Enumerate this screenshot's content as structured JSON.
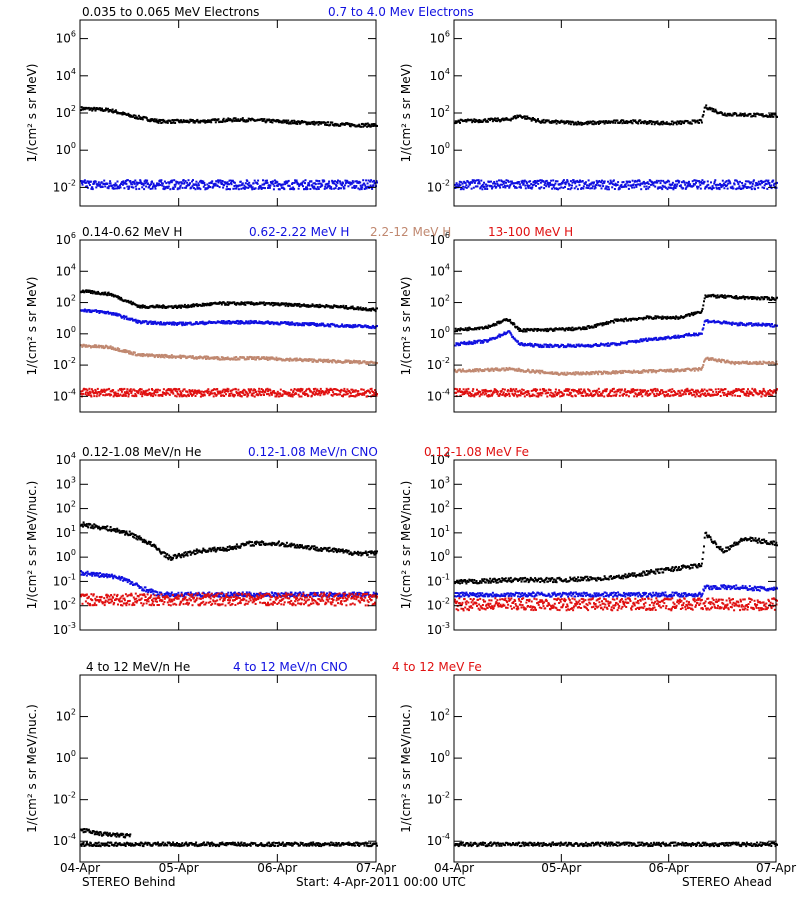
{
  "colors": {
    "black": "#000000",
    "blue": "#1010e0",
    "tan": "#c08870",
    "red": "#e01010"
  },
  "x_ticks": [
    "04-Apr",
    "05-Apr",
    "06-Apr",
    "07-Apr"
  ],
  "footer": {
    "left": "STEREO Behind",
    "center": "Start:  4-Apr-2011 00:00 UTC",
    "right": "STEREO Ahead"
  },
  "chart_data": [
    {
      "type": "scatter",
      "panel": "electrons",
      "ylabel": "1/(cm² s sr MeV)",
      "yscale": "log",
      "ylim_log10": [
        -3,
        7
      ],
      "ytick_exponents": [
        -2,
        0,
        2,
        4,
        6
      ],
      "xlim_days": [
        0,
        3
      ],
      "species": [
        {
          "name": "0.035 to 0.065 MeV Electrons",
          "color": "black"
        },
        {
          "name": "0.7 to 4.0 Mev Electrons",
          "color": "blue"
        }
      ],
      "behind": [
        {
          "color": "black",
          "x": [
            0,
            0.3,
            0.5,
            0.8,
            1.2,
            1.6,
            2.0,
            2.4,
            2.8,
            3.0
          ],
          "log10": [
            2.3,
            2.2,
            1.9,
            1.6,
            1.6,
            1.7,
            1.6,
            1.5,
            1.4,
            1.4
          ]
        },
        {
          "color": "blue",
          "x": [
            0,
            3.0
          ],
          "log10": [
            -1.8,
            -1.8
          ]
        }
      ],
      "ahead": [
        {
          "color": "black",
          "x": [
            0,
            0.5,
            0.6,
            0.8,
            1.2,
            1.6,
            2.0,
            2.3,
            2.33,
            2.5,
            3.0
          ],
          "log10": [
            1.6,
            1.7,
            1.9,
            1.6,
            1.5,
            1.6,
            1.5,
            1.6,
            2.4,
            2.0,
            1.9
          ]
        },
        {
          "color": "blue",
          "x": [
            0,
            3.0
          ],
          "log10": [
            -1.8,
            -1.8
          ]
        }
      ]
    },
    {
      "type": "scatter",
      "panel": "protons",
      "ylabel": "1/(cm² s sr MeV)",
      "yscale": "log",
      "ylim_log10": [
        -5,
        6
      ],
      "ytick_exponents": [
        -4,
        -2,
        0,
        2,
        4,
        6
      ],
      "xlim_days": [
        0,
        3
      ],
      "species": [
        {
          "name": "0.14-0.62 MeV H",
          "color": "black"
        },
        {
          "name": "0.62-2.22 MeV H",
          "color": "blue"
        },
        {
          "name": "2.2-12 MeV H",
          "color": "tan"
        },
        {
          "name": "13-100 MeV H",
          "color": "red"
        }
      ],
      "behind": [
        {
          "color": "black",
          "x": [
            0,
            0.3,
            0.6,
            1.0,
            1.4,
            1.8,
            2.2,
            2.6,
            3.0
          ],
          "log10": [
            2.8,
            2.6,
            1.8,
            1.8,
            2.0,
            2.0,
            1.9,
            1.8,
            1.6
          ]
        },
        {
          "color": "blue",
          "x": [
            0,
            0.3,
            0.6,
            1.0,
            1.4,
            1.8,
            2.2,
            2.6,
            3.0
          ],
          "log10": [
            1.6,
            1.4,
            0.8,
            0.7,
            0.8,
            0.8,
            0.7,
            0.6,
            0.5
          ]
        },
        {
          "color": "tan",
          "x": [
            0,
            0.3,
            0.6,
            1.0,
            1.4,
            1.8,
            2.2,
            2.6,
            3.0
          ],
          "log10": [
            -0.7,
            -0.8,
            -1.3,
            -1.4,
            -1.5,
            -1.5,
            -1.6,
            -1.7,
            -1.8
          ]
        },
        {
          "color": "red",
          "x": [
            0,
            3.0
          ],
          "log10": [
            -3.7,
            -3.7
          ]
        }
      ],
      "ahead": [
        {
          "color": "black",
          "x": [
            0,
            0.3,
            0.5,
            0.6,
            0.8,
            1.2,
            1.5,
            1.8,
            2.1,
            2.3,
            2.33,
            2.6,
            3.0
          ],
          "log10": [
            0.3,
            0.5,
            1.0,
            0.3,
            0.3,
            0.4,
            0.9,
            1.1,
            1.1,
            1.5,
            2.5,
            2.4,
            2.3
          ]
        },
        {
          "color": "blue",
          "x": [
            0,
            0.3,
            0.5,
            0.6,
            0.8,
            1.2,
            1.5,
            1.8,
            2.1,
            2.3,
            2.33,
            2.6,
            3.0
          ],
          "log10": [
            -0.6,
            -0.4,
            0.2,
            -0.6,
            -0.7,
            -0.7,
            -0.6,
            -0.3,
            -0.1,
            0.1,
            0.9,
            0.7,
            0.6
          ]
        },
        {
          "color": "tan",
          "x": [
            0,
            0.5,
            1.0,
            1.5,
            2.0,
            2.3,
            2.33,
            2.6,
            3.0
          ],
          "log10": [
            -2.3,
            -2.2,
            -2.5,
            -2.4,
            -2.3,
            -2.2,
            -1.5,
            -1.8,
            -1.8
          ]
        },
        {
          "color": "red",
          "x": [
            0,
            3.0
          ],
          "log10": [
            -3.7,
            -3.7
          ]
        }
      ]
    },
    {
      "type": "scatter",
      "panel": "heavy-ions-low",
      "ylabel": "1/(cm² s sr MeV/nuc.)",
      "yscale": "log",
      "ylim_log10": [
        -3,
        4
      ],
      "ytick_exponents": [
        -3,
        -2,
        -1,
        0,
        1,
        2,
        3,
        4
      ],
      "xlim_days": [
        0,
        3
      ],
      "species": [
        {
          "name": "0.12-1.08 MeV/n He",
          "color": "black"
        },
        {
          "name": "0.12-1.08 MeV/n CNO",
          "color": "blue"
        },
        {
          "name": "0.12-1.08 MeV Fe",
          "color": "red"
        }
      ],
      "behind": [
        {
          "color": "black",
          "x": [
            0,
            0.3,
            0.5,
            0.7,
            0.9,
            1.2,
            1.5,
            1.7,
            2.0,
            2.4,
            2.8,
            3.0
          ],
          "log10": [
            1.4,
            1.2,
            1.0,
            0.6,
            0.0,
            0.3,
            0.4,
            0.6,
            0.6,
            0.4,
            0.2,
            0.2
          ]
        },
        {
          "color": "blue",
          "x": [
            0,
            0.4,
            0.6,
            0.8,
            3.0
          ],
          "log10": [
            -0.6,
            -0.8,
            -1.2,
            -1.5,
            -1.5
          ]
        },
        {
          "color": "red",
          "x": [
            0,
            3.0
          ],
          "log10": [
            -1.7,
            -1.7
          ]
        }
      ],
      "ahead": [
        {
          "color": "black",
          "x": [
            0,
            0.5,
            1.0,
            1.5,
            1.8,
            2.1,
            2.3,
            2.33,
            2.5,
            2.7,
            3.0
          ],
          "log10": [
            -1.0,
            -0.9,
            -0.9,
            -0.8,
            -0.6,
            -0.4,
            -0.3,
            1.0,
            0.3,
            0.8,
            0.6
          ]
        },
        {
          "color": "blue",
          "x": [
            0,
            2.3,
            2.33,
            2.6,
            3.0
          ],
          "log10": [
            -1.5,
            -1.5,
            -1.2,
            -1.2,
            -1.3
          ]
        },
        {
          "color": "red",
          "x": [
            0,
            3.0
          ],
          "log10": [
            -1.9,
            -1.9
          ]
        }
      ]
    },
    {
      "type": "scatter",
      "panel": "heavy-ions-high",
      "ylabel": "1/(cm² s sr MeV/nuc.)",
      "yscale": "log",
      "ylim_log10": [
        -5,
        4
      ],
      "ytick_exponents": [
        -4,
        -2,
        0,
        2
      ],
      "xlim_days": [
        0,
        3
      ],
      "species": [
        {
          "name": "4 to 12 MeV/n He",
          "color": "black"
        },
        {
          "name": "4 to 12 MeV/n CNO",
          "color": "blue"
        },
        {
          "name": "4 to 12 MeV Fe",
          "color": "red"
        }
      ],
      "behind": [
        {
          "color": "black",
          "x": [
            0,
            0.2,
            0.5
          ],
          "log10": [
            -3.4,
            -3.6,
            -3.7
          ]
        },
        {
          "color": "black",
          "x": [
            0,
            3.0
          ],
          "log10": [
            -4.1,
            -4.1
          ]
        }
      ],
      "ahead": [
        {
          "color": "black",
          "x": [
            0,
            3.0
          ],
          "log10": [
            -4.1,
            -4.1
          ]
        }
      ]
    }
  ]
}
